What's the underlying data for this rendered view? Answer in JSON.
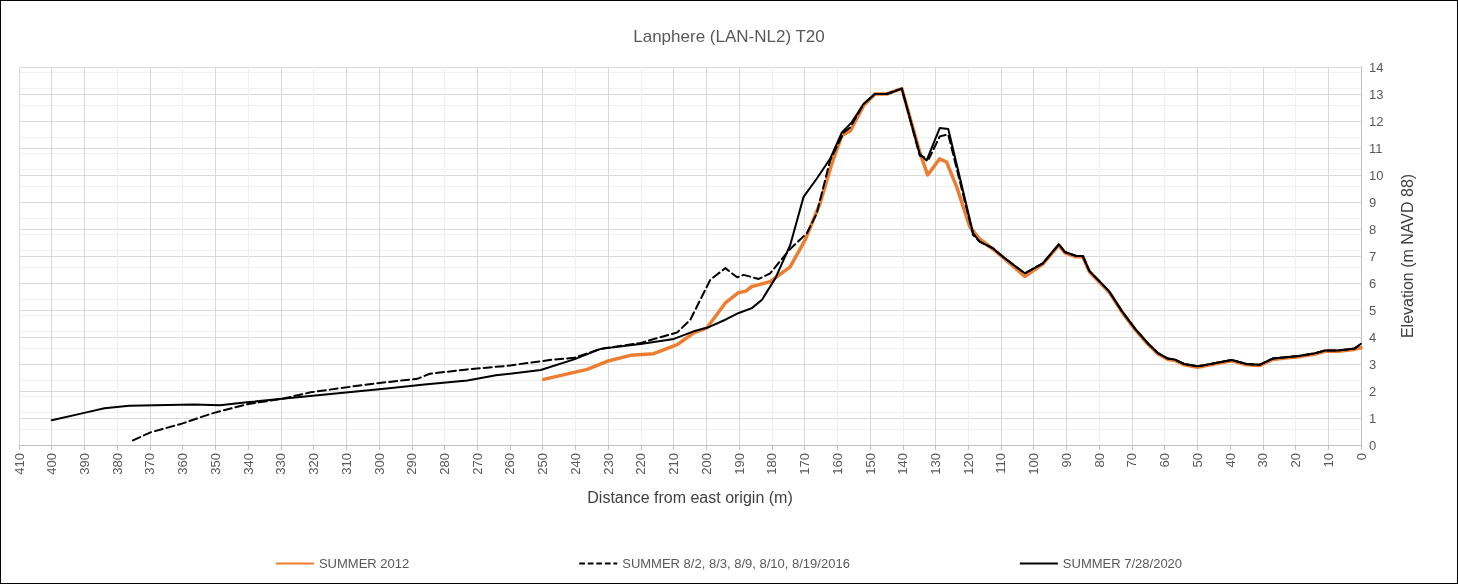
{
  "chart_data": {
    "type": "line",
    "title": "Lanphere (LAN-NL2) T20",
    "xlabel": "Distance from east origin (m)",
    "ylabel": "Elevation (m NAVD 88)",
    "xlim": [
      410,
      0
    ],
    "xticks": [
      410,
      400,
      390,
      380,
      370,
      360,
      350,
      340,
      330,
      320,
      310,
      300,
      290,
      280,
      270,
      260,
      250,
      240,
      230,
      220,
      210,
      200,
      190,
      180,
      170,
      160,
      150,
      140,
      130,
      120,
      110,
      100,
      90,
      80,
      70,
      60,
      50,
      40,
      30,
      20,
      10,
      0
    ],
    "ylim": [
      0,
      14
    ],
    "yticks": [
      0,
      1,
      2,
      3,
      4,
      5,
      6,
      7,
      8,
      9,
      10,
      11,
      12,
      13,
      14
    ],
    "grid": true,
    "legend": "bottom",
    "marker": "none",
    "series": [
      {
        "name": "SUMMER 2012",
        "color": "#ed7d31",
        "line_style": "solid",
        "x": [
          249.7,
          236.4,
          230.3,
          223.2,
          216.1,
          208.9,
          203.9,
          199.8,
          194.2,
          190.1,
          188.1,
          186.1,
          180.5,
          174.4,
          169.8,
          165.3,
          161.7,
          158.6,
          156,
          152,
          148.5,
          144.9,
          140.3,
          134.8,
          132.4,
          128.7,
          126.6,
          123.5,
          119.5,
          116.7,
          112.4,
          109.4,
          102.7,
          97.2,
          92.3,
          90.5,
          87,
          85,
          83,
          77,
          73,
          69,
          65,
          62,
          59,
          57,
          54,
          50,
          48,
          44,
          39.5,
          35,
          31,
          27,
          23,
          19,
          14,
          11,
          7,
          2,
          0
        ],
        "values": [
          2.43,
          2.8,
          3.1,
          3.32,
          3.38,
          3.72,
          4.15,
          4.34,
          5.26,
          5.65,
          5.69,
          5.87,
          6.05,
          6.6,
          7.6,
          8.94,
          10.41,
          11.46,
          11.64,
          12.56,
          13.0,
          13.0,
          13.2,
          10.84,
          10.0,
          10.6,
          10.48,
          9.55,
          8.08,
          7.65,
          7.25,
          6.95,
          6.24,
          6.7,
          7.4,
          7.12,
          6.97,
          6.97,
          6.42,
          5.67,
          4.92,
          4.27,
          3.72,
          3.37,
          3.17,
          3.14,
          2.97,
          2.88,
          2.92,
          3.02,
          3.12,
          2.97,
          2.94,
          3.17,
          3.22,
          3.27,
          3.37,
          3.47,
          3.47,
          3.54,
          3.6
        ]
      },
      {
        "name": "SUMMER 8/2, 8/3, 8/9, 8/10, 8/19/2016",
        "color": "#000000",
        "line_style": "dashed",
        "x": [
          375.2,
          369.8,
          360,
          351.3,
          340.4,
          329.6,
          320.9,
          312.2,
          301.3,
          288.3,
          284.5,
          273,
          261.1,
          247,
          240.4,
          232.3,
          220.1,
          208.9,
          204.9,
          198.8,
          194.2,
          190.6,
          188.6,
          184,
          180.5,
          174.4,
          169.3,
          166.3,
          162.2,
          158,
          156,
          152,
          148.5,
          144.9,
          140.3,
          134.8,
          132,
          128.7,
          126.1,
          118.5,
          116.5,
          112.4,
          109.4,
          102.7,
          97.2,
          92.3,
          90.5,
          87,
          85,
          83,
          77,
          73,
          69,
          65,
          62,
          59,
          57,
          54,
          50,
          48,
          44,
          39.5,
          35,
          31,
          27,
          23,
          19,
          14,
          11,
          7,
          2,
          0
        ],
        "values": [
          0.17,
          0.47,
          0.8,
          1.16,
          1.51,
          1.71,
          1.95,
          2.1,
          2.28,
          2.45,
          2.64,
          2.8,
          2.93,
          3.16,
          3.23,
          3.56,
          3.78,
          4.17,
          4.64,
          6.12,
          6.55,
          6.21,
          6.3,
          6.15,
          6.36,
          7.26,
          7.84,
          8.57,
          10.54,
          11.58,
          11.77,
          12.63,
          13.0,
          13.0,
          13.2,
          10.72,
          10.6,
          11.43,
          11.5,
          7.78,
          7.53,
          7.28,
          6.97,
          6.36,
          6.73,
          7.43,
          7.15,
          7.0,
          7.0,
          6.45,
          5.7,
          4.95,
          4.3,
          3.75,
          3.4,
          3.2,
          3.17,
          3.0,
          2.92,
          2.95,
          3.05,
          3.15,
          3.0,
          2.97,
          3.2,
          3.25,
          3.3,
          3.4,
          3.5,
          3.5,
          3.57,
          3.75
        ]
      },
      {
        "name": "SUMMER 7/28/2020",
        "color": "#000000",
        "line_style": "solid",
        "x": [
          400,
          390.4,
          383.9,
          376.3,
          356.7,
          348.6,
          340.4,
          329.6,
          318.7,
          307.8,
          296.9,
          286.1,
          273,
          264.3,
          255.6,
          250.6,
          240.4,
          232.3,
          220.1,
          209.9,
          203.9,
          199.8,
          194.2,
          190.1,
          186.1,
          183,
          178.9,
          174.4,
          170.3,
          166.3,
          162.2,
          158.6,
          155.6,
          152,
          148.5,
          144.9,
          140.3,
          134.8,
          132.7,
          128.7,
          126.1,
          118.5,
          116.5,
          112.4,
          109.4,
          102.7,
          97.2,
          92.3,
          90.5,
          87,
          85,
          83,
          77,
          73,
          69,
          65,
          62,
          59,
          57,
          54,
          50,
          48,
          44,
          39.5,
          35,
          31,
          27,
          23,
          19,
          14,
          11,
          7,
          2,
          0
        ],
        "values": [
          0.92,
          1.18,
          1.36,
          1.45,
          1.5,
          1.47,
          1.58,
          1.71,
          1.84,
          1.97,
          2.1,
          2.24,
          2.39,
          2.58,
          2.7,
          2.78,
          3.17,
          3.56,
          3.74,
          3.93,
          4.21,
          4.34,
          4.64,
          4.89,
          5.07,
          5.38,
          6.18,
          7.4,
          9.19,
          9.86,
          10.6,
          11.58,
          11.95,
          12.63,
          13.0,
          13.0,
          13.2,
          10.78,
          10.54,
          11.74,
          11.7,
          7.84,
          7.53,
          7.28,
          6.97,
          6.36,
          6.73,
          7.43,
          7.15,
          7.0,
          7.0,
          6.45,
          5.7,
          4.95,
          4.3,
          3.75,
          3.4,
          3.2,
          3.17,
          3.0,
          2.92,
          2.95,
          3.05,
          3.15,
          3.0,
          2.97,
          3.2,
          3.25,
          3.3,
          3.4,
          3.5,
          3.5,
          3.57,
          3.75
        ]
      }
    ]
  }
}
